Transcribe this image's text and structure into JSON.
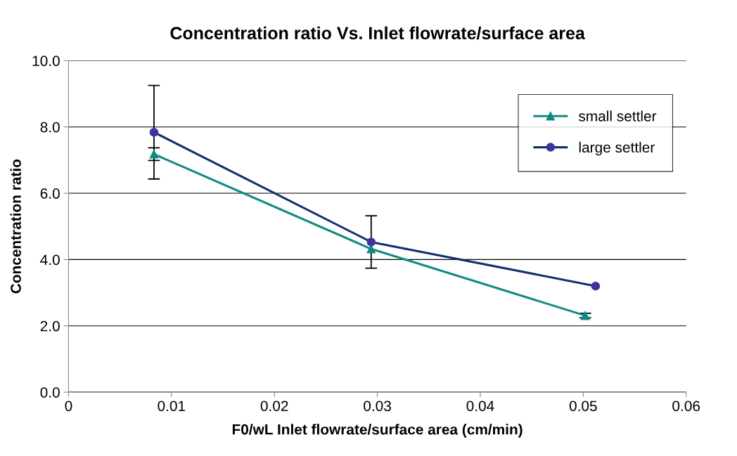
{
  "chart_data": {
    "type": "line",
    "title": "Concentration ratio Vs. Inlet flowrate/surface area",
    "xlabel": "F0/wL Inlet flowrate/surface area (cm/min)",
    "ylabel": "Concentration ratio",
    "xlim": [
      0,
      0.06
    ],
    "xticks": [
      0,
      0.01,
      0.02,
      0.03,
      0.04,
      0.05,
      0.06
    ],
    "ylim": [
      0,
      10
    ],
    "yticks": [
      {
        "value": 0,
        "label": "0.0"
      },
      {
        "value": 2,
        "label": "2.0"
      },
      {
        "value": 4,
        "label": "4.0"
      },
      {
        "value": 6,
        "label": "6.0"
      },
      {
        "value": 8,
        "label": "8.0"
      },
      {
        "value": 10,
        "label": "10.0"
      }
    ],
    "grid": "y",
    "legend": "top right",
    "series": [
      {
        "name": "small settler",
        "color": "#108b84",
        "marker": "triangle",
        "x": [
          0.0083,
          0.0294,
          0.0502
        ],
        "values": [
          7.18,
          4.32,
          2.31
        ],
        "errors": [
          0.19,
          null,
          0.07
        ]
      },
      {
        "name": "large settler",
        "color": "#14306e",
        "marker": "circle",
        "x": [
          0.0083,
          0.0294,
          0.0512
        ],
        "values": [
          7.84,
          4.53,
          3.2
        ],
        "errors": [
          1.41,
          0.79,
          null
        ]
      }
    ]
  }
}
